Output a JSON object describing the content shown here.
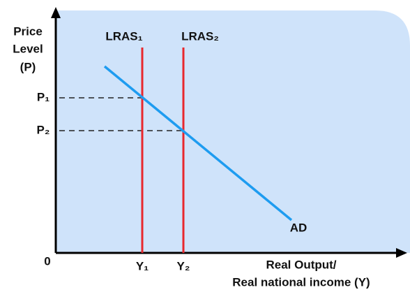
{
  "axes": {
    "y_label": [
      "Price",
      "Level",
      "(P)"
    ],
    "origin": "0",
    "x_label": [
      "Real Output/",
      "Real national income (Y)"
    ]
  },
  "curves": [
    {
      "label": "LRAS₁"
    },
    {
      "label": "LRAS₂"
    },
    {
      "label": "AD"
    }
  ],
  "price_levels": [
    "P₁",
    "P₂"
  ],
  "output_levels": [
    "Y₁",
    "Y₂"
  ]
}
